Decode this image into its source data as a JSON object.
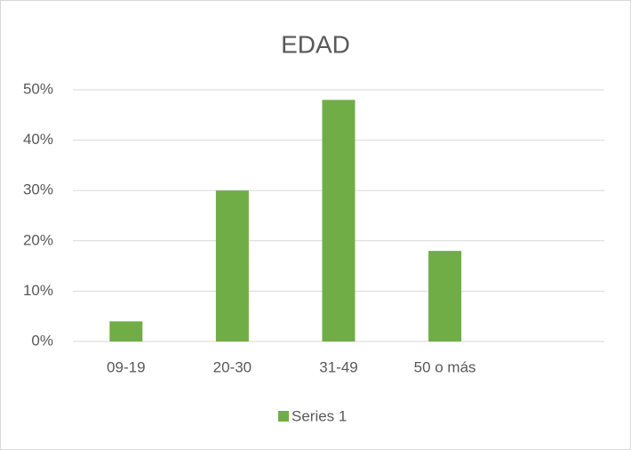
{
  "chart_data": {
    "type": "bar",
    "title": "EDAD",
    "categories": [
      "09-19",
      "20-30",
      "31-49",
      "50 o más",
      null
    ],
    "series": [
      {
        "name": "Series 1",
        "color": "#70ad47",
        "values": [
          4,
          30,
          48,
          18,
          null
        ]
      }
    ],
    "ylim": [
      0,
      50
    ],
    "yticks": [
      {
        "value": 0,
        "label": "0%"
      },
      {
        "value": 10,
        "label": "10%"
      },
      {
        "value": 20,
        "label": "20%"
      },
      {
        "value": 30,
        "label": "30%"
      },
      {
        "value": 40,
        "label": "40%"
      },
      {
        "value": 50,
        "label": "50%"
      }
    ],
    "grid": true,
    "legend": "bottom"
  }
}
